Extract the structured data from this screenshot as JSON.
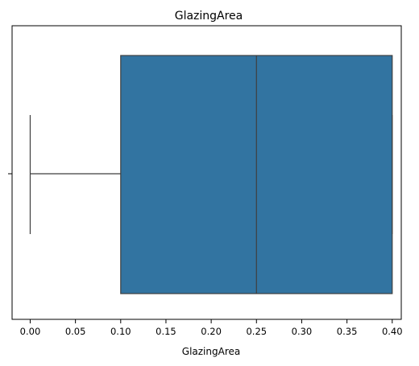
{
  "chart_data": {
    "type": "box",
    "title": "GlazingArea",
    "xlabel": "GlazingArea",
    "ylabel": "",
    "xlim": [
      -0.02,
      0.41
    ],
    "x_ticks": [
      0.0,
      0.05,
      0.1,
      0.15,
      0.2,
      0.25,
      0.3,
      0.35,
      0.4
    ],
    "x_tick_labels": [
      "0.00",
      "0.05",
      "0.10",
      "0.15",
      "0.20",
      "0.25",
      "0.30",
      "0.35",
      "0.40"
    ],
    "grid": false,
    "orientation": "horizontal",
    "box": {
      "whisker_low": 0.0,
      "q1": 0.1,
      "median": 0.25,
      "q3": 0.4,
      "whisker_high": 0.4
    },
    "colors": {
      "box_fill": "#3274a1",
      "line": "#3f3f3f",
      "axis": "#000000"
    }
  }
}
